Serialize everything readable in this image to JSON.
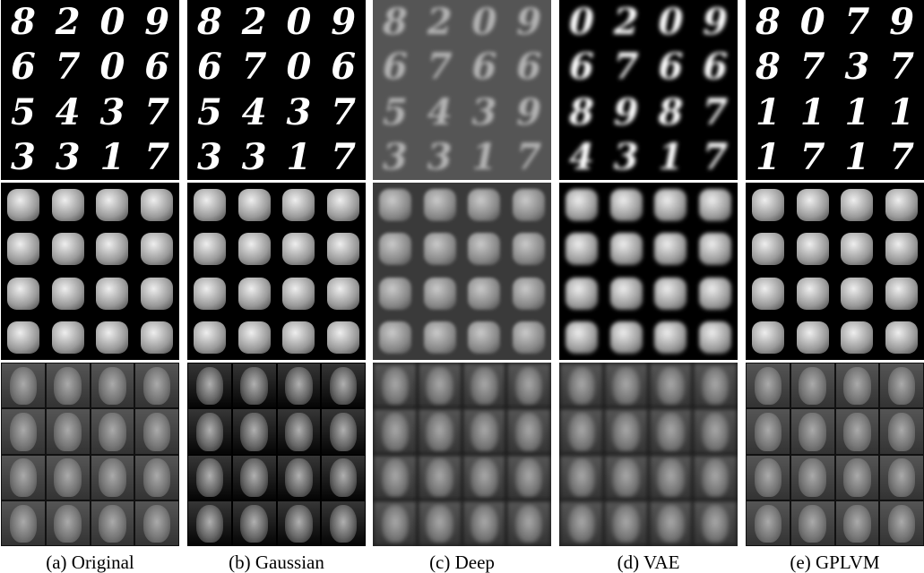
{
  "panels": [
    {
      "caption": "(a) Original",
      "digits": [
        [
          "8",
          "2",
          "0",
          "9"
        ],
        [
          "6",
          "7",
          "0",
          "6"
        ],
        [
          "5",
          "4",
          "3",
          "7"
        ],
        [
          "3",
          "3",
          "1",
          "7"
        ]
      ]
    },
    {
      "caption": "(b) Gaussian",
      "digits": [
        [
          "8",
          "2",
          "0",
          "9"
        ],
        [
          "6",
          "7",
          "0",
          "6"
        ],
        [
          "5",
          "4",
          "3",
          "7"
        ],
        [
          "3",
          "3",
          "1",
          "7"
        ]
      ]
    },
    {
      "caption": "(c) Deep",
      "digits": [
        [
          "8",
          "2",
          "0",
          "9"
        ],
        [
          "6",
          "7",
          "6",
          "6"
        ],
        [
          "5",
          "4",
          "3",
          "9"
        ],
        [
          "3",
          "3",
          "1",
          "7"
        ]
      ]
    },
    {
      "caption": "(d) VAE",
      "digits": [
        [
          "0",
          "2",
          "0",
          "9"
        ],
        [
          "6",
          "7",
          "6",
          "6"
        ],
        [
          "8",
          "9",
          "8",
          "7"
        ],
        [
          "4",
          "3",
          "1",
          "7"
        ]
      ]
    },
    {
      "caption": "(e) GPLVM",
      "digits": [
        [
          "8",
          "0",
          "7",
          "9"
        ],
        [
          "8",
          "7",
          "3",
          "7"
        ],
        [
          "1",
          "1",
          "1",
          "1"
        ],
        [
          "1",
          "7",
          "1",
          "7"
        ]
      ]
    }
  ]
}
